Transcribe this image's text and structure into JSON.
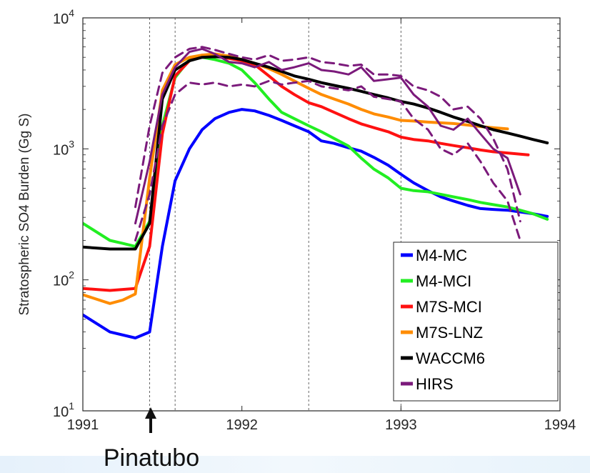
{
  "chart_data": {
    "type": "line",
    "title": "",
    "xlabel": "",
    "ylabel": "Stratospheric SO4 Burden (Gg S)",
    "xlim": [
      1991,
      1994
    ],
    "ylim": [
      10,
      10000
    ],
    "yscale": "log",
    "grid": false,
    "x_ticks": [
      {
        "value": 1991,
        "label": "1991"
      },
      {
        "value": 1992,
        "label": "1992"
      },
      {
        "value": 1993,
        "label": "1993"
      },
      {
        "value": 1994,
        "label": "1994"
      }
    ],
    "y_ticks": [
      {
        "value": 10,
        "base": "10",
        "exp": "1"
      },
      {
        "value": 100,
        "base": "10",
        "exp": "2"
      },
      {
        "value": 1000,
        "base": "10",
        "exp": "3"
      },
      {
        "value": 10000,
        "base": "10",
        "exp": "4"
      }
    ],
    "reference_lines_x": [
      1991.42,
      1991.58,
      1992.42,
      1993.0
    ],
    "legend_position": "bottom-right",
    "series": [
      {
        "name": "M4-MC",
        "color": "#0000ff",
        "style": "solid",
        "points": [
          [
            1991.0,
            54
          ],
          [
            1991.17,
            40
          ],
          [
            1991.33,
            36
          ],
          [
            1991.42,
            40
          ],
          [
            1991.5,
            180
          ],
          [
            1991.58,
            570
          ],
          [
            1991.67,
            1000
          ],
          [
            1991.75,
            1400
          ],
          [
            1991.83,
            1700
          ],
          [
            1991.92,
            1900
          ],
          [
            1992.0,
            2000
          ],
          [
            1992.08,
            1950
          ],
          [
            1992.17,
            1800
          ],
          [
            1992.25,
            1650
          ],
          [
            1992.33,
            1500
          ],
          [
            1992.42,
            1350
          ],
          [
            1992.5,
            1150
          ],
          [
            1992.58,
            1100
          ],
          [
            1992.67,
            1020
          ],
          [
            1992.75,
            960
          ],
          [
            1992.83,
            860
          ],
          [
            1992.92,
            750
          ],
          [
            1993.0,
            640
          ],
          [
            1993.08,
            550
          ],
          [
            1993.17,
            480
          ],
          [
            1993.25,
            430
          ],
          [
            1993.33,
            400
          ],
          [
            1993.42,
            370
          ],
          [
            1993.5,
            350
          ],
          [
            1993.58,
            345
          ],
          [
            1993.67,
            340
          ],
          [
            1993.75,
            330
          ],
          [
            1993.83,
            320
          ],
          [
            1993.92,
            305
          ]
        ]
      },
      {
        "name": "M4-MCI",
        "color": "#22ee22",
        "style": "solid",
        "points": [
          [
            1991.0,
            270
          ],
          [
            1991.17,
            200
          ],
          [
            1991.25,
            190
          ],
          [
            1991.33,
            180
          ],
          [
            1991.42,
            280
          ],
          [
            1991.5,
            1500
          ],
          [
            1991.58,
            3500
          ],
          [
            1991.67,
            4800
          ],
          [
            1991.75,
            5000
          ],
          [
            1991.83,
            4800
          ],
          [
            1991.92,
            4500
          ],
          [
            1992.0,
            4000
          ],
          [
            1992.08,
            3200
          ],
          [
            1992.17,
            2400
          ],
          [
            1992.25,
            1900
          ],
          [
            1992.33,
            1700
          ],
          [
            1992.42,
            1500
          ],
          [
            1992.5,
            1350
          ],
          [
            1992.58,
            1200
          ],
          [
            1992.67,
            1050
          ],
          [
            1992.75,
            850
          ],
          [
            1992.83,
            700
          ],
          [
            1992.92,
            600
          ],
          [
            1993.0,
            500
          ],
          [
            1993.08,
            480
          ],
          [
            1993.17,
            470
          ],
          [
            1993.25,
            450
          ],
          [
            1993.33,
            430
          ],
          [
            1993.42,
            410
          ],
          [
            1993.5,
            390
          ],
          [
            1993.58,
            375
          ],
          [
            1993.67,
            360
          ],
          [
            1993.75,
            340
          ],
          [
            1993.83,
            320
          ],
          [
            1993.92,
            290
          ]
        ]
      },
      {
        "name": "M7S-MCI",
        "color": "#ff1111",
        "style": "solid",
        "points": [
          [
            1991.0,
            86
          ],
          [
            1991.17,
            83
          ],
          [
            1991.33,
            86
          ],
          [
            1991.42,
            180
          ],
          [
            1991.5,
            1300
          ],
          [
            1991.58,
            3600
          ],
          [
            1991.67,
            4700
          ],
          [
            1991.75,
            5200
          ],
          [
            1991.83,
            5100
          ],
          [
            1991.92,
            4900
          ],
          [
            1992.0,
            4700
          ],
          [
            1992.08,
            4400
          ],
          [
            1992.17,
            3600
          ],
          [
            1992.25,
            3000
          ],
          [
            1992.33,
            2600
          ],
          [
            1992.42,
            2250
          ],
          [
            1992.5,
            2100
          ],
          [
            1992.58,
            1900
          ],
          [
            1992.67,
            1700
          ],
          [
            1992.75,
            1550
          ],
          [
            1992.83,
            1450
          ],
          [
            1992.92,
            1350
          ],
          [
            1993.0,
            1230
          ],
          [
            1993.08,
            1180
          ],
          [
            1993.17,
            1150
          ],
          [
            1993.25,
            1100
          ],
          [
            1993.33,
            1060
          ],
          [
            1993.42,
            1020
          ],
          [
            1993.5,
            980
          ],
          [
            1993.58,
            950
          ],
          [
            1993.67,
            930
          ],
          [
            1993.75,
            910
          ],
          [
            1993.8,
            900
          ]
        ]
      },
      {
        "name": "M7S-LNZ",
        "color": "#ff8c00",
        "style": "solid",
        "points": [
          [
            1991.0,
            77
          ],
          [
            1991.17,
            66
          ],
          [
            1991.25,
            70
          ],
          [
            1991.33,
            78
          ],
          [
            1991.42,
            600
          ],
          [
            1991.5,
            2800
          ],
          [
            1991.58,
            4400
          ],
          [
            1991.67,
            5000
          ],
          [
            1991.75,
            5200
          ],
          [
            1991.83,
            5300
          ],
          [
            1991.92,
            5100
          ],
          [
            1992.0,
            4800
          ],
          [
            1992.08,
            4500
          ],
          [
            1992.17,
            4100
          ],
          [
            1992.25,
            3700
          ],
          [
            1992.33,
            3300
          ],
          [
            1992.42,
            2900
          ],
          [
            1992.5,
            2600
          ],
          [
            1992.58,
            2400
          ],
          [
            1992.67,
            2200
          ],
          [
            1992.75,
            2000
          ],
          [
            1992.83,
            1850
          ],
          [
            1992.92,
            1750
          ],
          [
            1993.0,
            1650
          ],
          [
            1993.08,
            1630
          ],
          [
            1993.17,
            1600
          ],
          [
            1993.25,
            1580
          ],
          [
            1993.33,
            1560
          ],
          [
            1993.42,
            1520
          ],
          [
            1993.5,
            1480
          ],
          [
            1993.58,
            1450
          ],
          [
            1993.67,
            1420
          ]
        ]
      },
      {
        "name": "WACCM6",
        "color": "#000000",
        "style": "solid",
        "points": [
          [
            1991.0,
            178
          ],
          [
            1991.17,
            172
          ],
          [
            1991.33,
            172
          ],
          [
            1991.42,
            270
          ],
          [
            1991.5,
            2400
          ],
          [
            1991.58,
            4000
          ],
          [
            1991.67,
            4700
          ],
          [
            1991.75,
            5000
          ],
          [
            1991.83,
            5050
          ],
          [
            1991.92,
            5000
          ],
          [
            1992.0,
            4800
          ],
          [
            1992.08,
            4500
          ],
          [
            1992.17,
            4200
          ],
          [
            1992.25,
            3900
          ],
          [
            1992.33,
            3600
          ],
          [
            1992.42,
            3400
          ],
          [
            1992.5,
            3200
          ],
          [
            1992.58,
            3050
          ],
          [
            1992.67,
            2900
          ],
          [
            1992.75,
            2750
          ],
          [
            1992.83,
            2600
          ],
          [
            1992.92,
            2450
          ],
          [
            1993.0,
            2300
          ],
          [
            1993.08,
            2200
          ],
          [
            1993.17,
            2050
          ],
          [
            1993.25,
            1900
          ],
          [
            1993.33,
            1750
          ],
          [
            1993.42,
            1620
          ],
          [
            1993.5,
            1500
          ],
          [
            1993.58,
            1400
          ],
          [
            1993.67,
            1320
          ],
          [
            1993.75,
            1250
          ],
          [
            1993.83,
            1180
          ],
          [
            1993.92,
            1110
          ]
        ]
      },
      {
        "name": "HIRS",
        "color": "#7b1a7b",
        "style": "solid",
        "points": [
          [
            1991.33,
            270
          ],
          [
            1991.42,
            800
          ],
          [
            1991.5,
            2600
          ],
          [
            1991.58,
            4200
          ],
          [
            1991.67,
            5500
          ],
          [
            1991.75,
            5800
          ],
          [
            1991.83,
            5300
          ],
          [
            1991.92,
            4600
          ],
          [
            1992.0,
            4500
          ],
          [
            1992.08,
            4200
          ],
          [
            1992.17,
            4600
          ],
          [
            1992.25,
            4000
          ],
          [
            1992.33,
            4200
          ],
          [
            1992.42,
            4500
          ],
          [
            1992.5,
            4000
          ],
          [
            1992.58,
            3900
          ],
          [
            1992.67,
            3700
          ],
          [
            1992.75,
            4200
          ],
          [
            1992.83,
            3300
          ],
          [
            1992.92,
            3400
          ],
          [
            1993.0,
            3500
          ],
          [
            1993.08,
            2600
          ],
          [
            1993.17,
            2100
          ],
          [
            1993.25,
            1500
          ],
          [
            1993.33,
            1400
          ],
          [
            1993.42,
            1700
          ],
          [
            1993.5,
            1300
          ],
          [
            1993.58,
            1000
          ],
          [
            1993.67,
            850
          ],
          [
            1993.75,
            450
          ]
        ]
      },
      {
        "name": "",
        "color": "#7b1a7b",
        "style": "dashed",
        "points": [
          [
            1991.33,
            360
          ],
          [
            1991.42,
            1500
          ],
          [
            1991.5,
            3800
          ],
          [
            1991.58,
            5000
          ],
          [
            1991.67,
            5800
          ],
          [
            1991.75,
            6000
          ],
          [
            1991.83,
            5700
          ],
          [
            1991.92,
            5300
          ],
          [
            1992.0,
            5000
          ],
          [
            1992.08,
            4800
          ],
          [
            1992.17,
            5200
          ],
          [
            1992.25,
            4700
          ],
          [
            1992.33,
            4800
          ],
          [
            1992.42,
            5000
          ],
          [
            1992.5,
            4600
          ],
          [
            1992.58,
            4500
          ],
          [
            1992.67,
            4300
          ],
          [
            1992.75,
            4400
          ],
          [
            1992.83,
            3700
          ],
          [
            1992.92,
            3700
          ],
          [
            1993.0,
            3600
          ],
          [
            1993.08,
            3000
          ],
          [
            1993.17,
            2800
          ],
          [
            1993.25,
            2500
          ],
          [
            1993.33,
            2000
          ],
          [
            1993.42,
            2100
          ],
          [
            1993.5,
            1700
          ],
          [
            1993.58,
            1200
          ],
          [
            1993.67,
            700
          ],
          [
            1993.75,
            280
          ]
        ]
      },
      {
        "name": "",
        "color": "#7b1a7b",
        "style": "dashed",
        "points": [
          [
            1991.33,
            200
          ],
          [
            1991.42,
            450
          ],
          [
            1991.5,
            1500
          ],
          [
            1991.58,
            2600
          ],
          [
            1991.67,
            3200
          ],
          [
            1991.75,
            3100
          ],
          [
            1991.83,
            3200
          ],
          [
            1991.92,
            3000
          ],
          [
            1992.0,
            3100
          ],
          [
            1992.08,
            3000
          ],
          [
            1992.17,
            3300
          ],
          [
            1992.25,
            3100
          ],
          [
            1992.33,
            3200
          ],
          [
            1992.42,
            3300
          ],
          [
            1992.5,
            3000
          ],
          [
            1992.58,
            2900
          ],
          [
            1992.67,
            2800
          ],
          [
            1992.75,
            3000
          ],
          [
            1992.83,
            2500
          ],
          [
            1992.92,
            2400
          ],
          [
            1993.0,
            2300
          ],
          [
            1993.08,
            1700
          ],
          [
            1993.17,
            1400
          ],
          [
            1993.25,
            1000
          ],
          [
            1993.33,
            900
          ],
          [
            1993.42,
            1100
          ],
          [
            1993.5,
            800
          ],
          [
            1993.58,
            550
          ],
          [
            1993.67,
            400
          ],
          [
            1993.75,
            200
          ]
        ]
      }
    ],
    "annotations": [
      {
        "text": "Pinatubo",
        "x": 1991.42,
        "arrow": true
      }
    ]
  }
}
